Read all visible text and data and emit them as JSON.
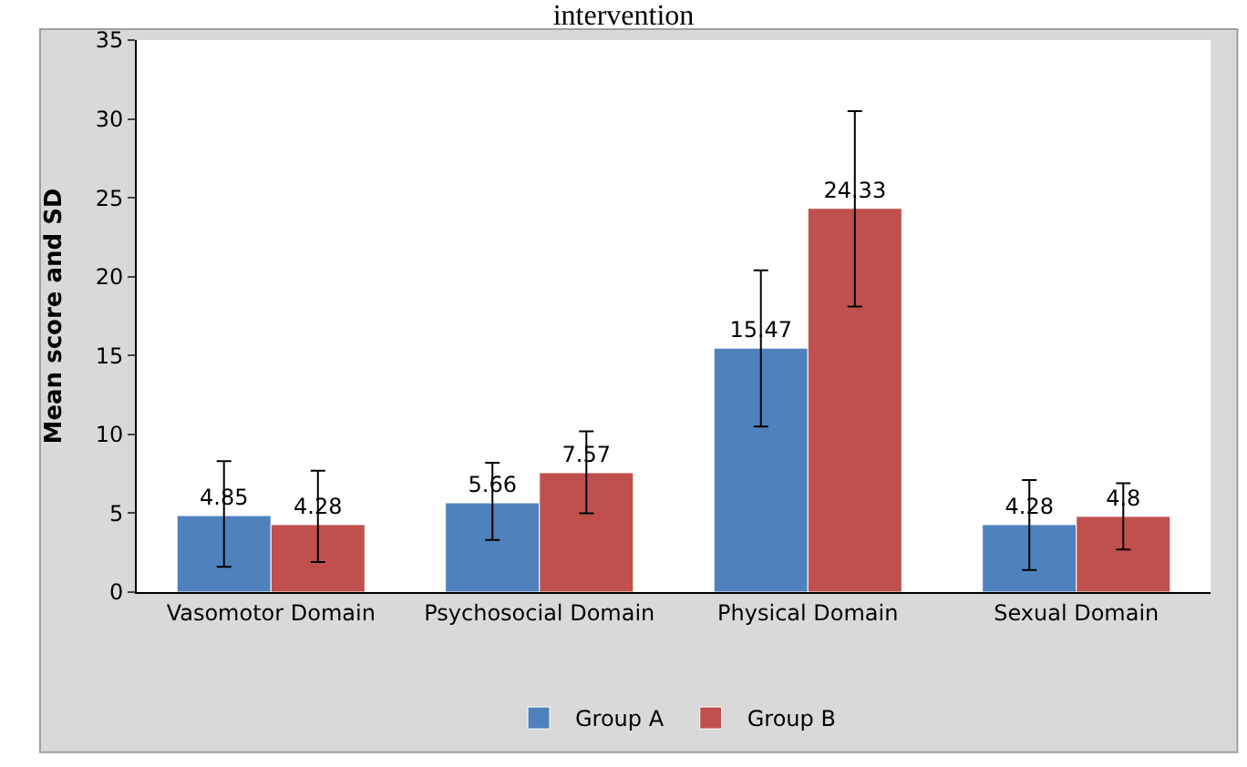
{
  "chart_data": {
    "type": "bar",
    "title": "intervention",
    "ylabel": "Mean score and SD",
    "categories": [
      "Vasomotor Domain",
      "Psychosocial Domain",
      "Physical Domain",
      "Sexual Domain"
    ],
    "series": [
      {
        "name": "Group A",
        "color": "#4f81bd",
        "values": [
          4.85,
          5.66,
          15.47,
          4.28
        ],
        "errors": [
          [
            1.6,
            8.3
          ],
          [
            3.3,
            8.2
          ],
          [
            10.5,
            20.4
          ],
          [
            1.4,
            7.1
          ]
        ]
      },
      {
        "name": "Group B",
        "color": "#c0504d",
        "values": [
          4.28,
          7.57,
          24.33,
          4.8
        ],
        "errors": [
          [
            1.9,
            7.7
          ],
          [
            5.0,
            10.2
          ],
          [
            18.1,
            30.5
          ],
          [
            2.7,
            6.9
          ]
        ]
      }
    ],
    "ylim": [
      0,
      35
    ],
    "yticks": [
      0,
      5,
      10,
      15,
      20,
      25,
      30,
      35
    ],
    "grid": false,
    "legend": "bottom",
    "data_labels": true
  }
}
